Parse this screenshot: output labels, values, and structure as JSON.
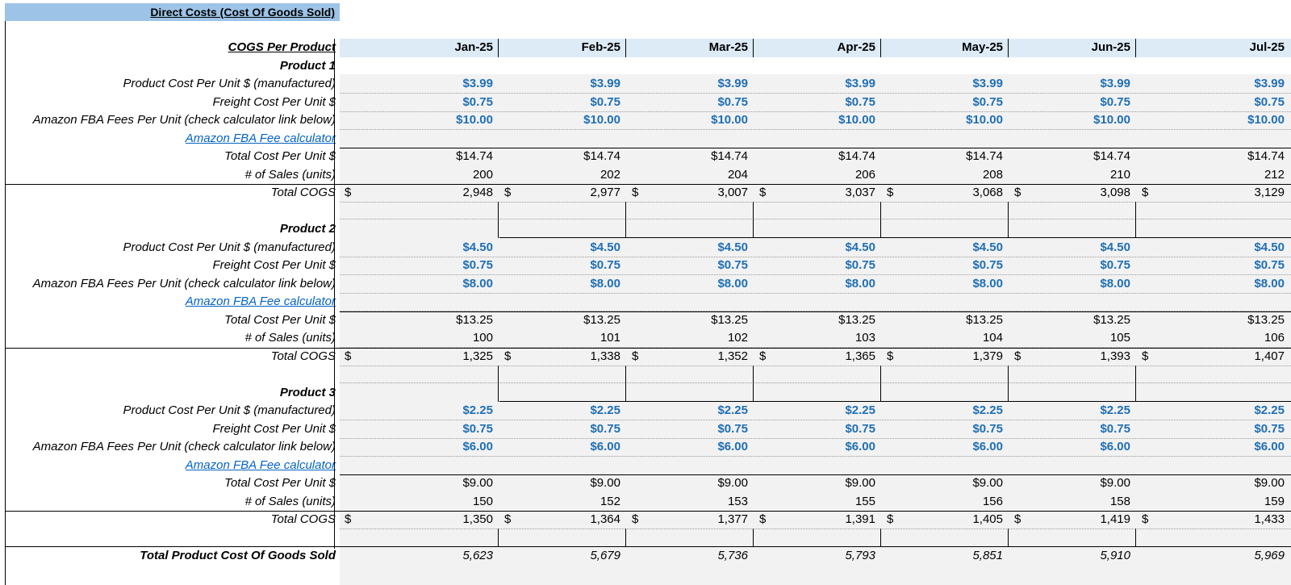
{
  "title": "Direct Costs (Cost Of Goods Sold)",
  "header_label": "COGS Per Product",
  "months": [
    "Jan-25",
    "Feb-25",
    "Mar-25",
    "Apr-25",
    "May-25",
    "Jun-25",
    "Jul-25"
  ],
  "currency_symbol": "$",
  "colors": {
    "input_blue": "#1f6fb5",
    "link_blue": "#0563c1",
    "title_bg": "#9dc3e6",
    "header_bg": "#ddebf7",
    "cell_bg": "#f2f2f2"
  },
  "labels": {
    "product_cost": "Product Cost Per Unit $ (manufactured)",
    "freight": "Freight Cost Per Unit $",
    "fba": "Amazon FBA Fees Per Unit (check calculator link below)",
    "fba_link": "Amazon FBA Fee calculator",
    "total_cost": "Total Cost Per Unit $",
    "sales": "# of Sales (units)",
    "total_cogs": "Total COGS"
  },
  "products": [
    {
      "name": "Product 1",
      "product_cost": [
        "$3.99",
        "$3.99",
        "$3.99",
        "$3.99",
        "$3.99",
        "$3.99",
        "$3.99"
      ],
      "freight": [
        "$0.75",
        "$0.75",
        "$0.75",
        "$0.75",
        "$0.75",
        "$0.75",
        "$0.75"
      ],
      "fba": [
        "$10.00",
        "$10.00",
        "$10.00",
        "$10.00",
        "$10.00",
        "$10.00",
        "$10.00"
      ],
      "total_cost": [
        "$14.74",
        "$14.74",
        "$14.74",
        "$14.74",
        "$14.74",
        "$14.74",
        "$14.74"
      ],
      "sales": [
        "200",
        "202",
        "204",
        "206",
        "208",
        "210",
        "212"
      ],
      "total_cogs": [
        "2,948",
        "2,977",
        "3,007",
        "3,037",
        "3,068",
        "3,098",
        "3,129"
      ]
    },
    {
      "name": "Product 2",
      "product_cost": [
        "$4.50",
        "$4.50",
        "$4.50",
        "$4.50",
        "$4.50",
        "$4.50",
        "$4.50"
      ],
      "freight": [
        "$0.75",
        "$0.75",
        "$0.75",
        "$0.75",
        "$0.75",
        "$0.75",
        "$0.75"
      ],
      "fba": [
        "$8.00",
        "$8.00",
        "$8.00",
        "$8.00",
        "$8.00",
        "$8.00",
        "$8.00"
      ],
      "total_cost": [
        "$13.25",
        "$13.25",
        "$13.25",
        "$13.25",
        "$13.25",
        "$13.25",
        "$13.25"
      ],
      "sales": [
        "100",
        "101",
        "102",
        "103",
        "104",
        "105",
        "106"
      ],
      "total_cogs": [
        "1,325",
        "1,338",
        "1,352",
        "1,365",
        "1,379",
        "1,393",
        "1,407"
      ]
    },
    {
      "name": "Product 3",
      "product_cost": [
        "$2.25",
        "$2.25",
        "$2.25",
        "$2.25",
        "$2.25",
        "$2.25",
        "$2.25"
      ],
      "freight": [
        "$0.75",
        "$0.75",
        "$0.75",
        "$0.75",
        "$0.75",
        "$0.75",
        "$0.75"
      ],
      "fba": [
        "$6.00",
        "$6.00",
        "$6.00",
        "$6.00",
        "$6.00",
        "$6.00",
        "$6.00"
      ],
      "total_cost": [
        "$9.00",
        "$9.00",
        "$9.00",
        "$9.00",
        "$9.00",
        "$9.00",
        "$9.00"
      ],
      "sales": [
        "150",
        "152",
        "153",
        "155",
        "156",
        "158",
        "159"
      ],
      "total_cogs": [
        "1,350",
        "1,364",
        "1,377",
        "1,391",
        "1,405",
        "1,419",
        "1,433"
      ]
    }
  ],
  "grand_total_label": "Total Product Cost Of Goods Sold",
  "grand_total": [
    "5,623",
    "5,679",
    "5,736",
    "5,793",
    "5,851",
    "5,910",
    "5,969"
  ]
}
